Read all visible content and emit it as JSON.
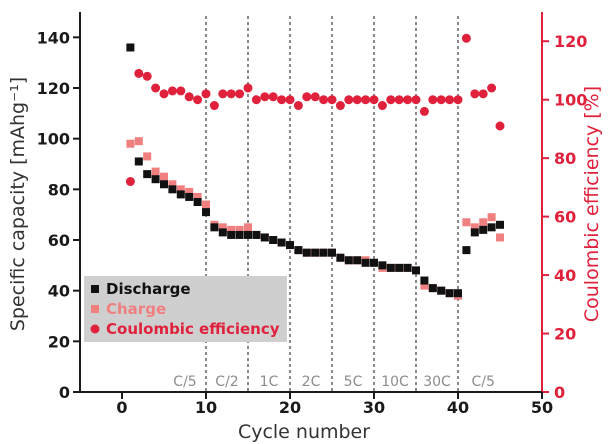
{
  "chart_data": {
    "type": "scatter",
    "xlabel": "Cycle number",
    "ylabel_left": "Specific capacity [mAhg⁻¹]",
    "ylabel_right": "Coulombic efficiency [%]",
    "xlim": [
      -5,
      50
    ],
    "ylim_left": [
      0,
      150
    ],
    "ylim_right": [
      0,
      130
    ],
    "xticks": [
      0,
      10,
      20,
      30,
      40,
      50
    ],
    "yticks_left": [
      0,
      20,
      40,
      60,
      80,
      100,
      120,
      140
    ],
    "yticks_right": [
      0,
      20,
      40,
      60,
      80,
      100,
      120
    ],
    "grid": false,
    "legend_position": "bottom-left",
    "rate_boundaries": [
      10,
      15,
      20,
      25,
      30,
      35,
      40
    ],
    "rate_labels": [
      {
        "label": "C/5",
        "x": 7.5
      },
      {
        "label": "C/2",
        "x": 12.5
      },
      {
        "label": "1C",
        "x": 17.5
      },
      {
        "label": "2C",
        "x": 22.5
      },
      {
        "label": "5C",
        "x": 27.5
      },
      {
        "label": "10C",
        "x": 32.5
      },
      {
        "label": "30C",
        "x": 37.5
      },
      {
        "label": "C/5",
        "x": 43
      }
    ],
    "colors": {
      "discharge": "#111111",
      "charge": "#f08080",
      "efficiency": "#e0213c",
      "right_axis": "#e0213c",
      "legend_bg": "#cfcfcf"
    },
    "series": [
      {
        "name": "Discharge",
        "axis": "left",
        "marker": "square",
        "x": [
          1,
          2,
          3,
          4,
          5,
          6,
          7,
          8,
          9,
          10,
          11,
          12,
          13,
          14,
          15,
          16,
          17,
          18,
          19,
          20,
          21,
          22,
          23,
          24,
          25,
          26,
          27,
          28,
          29,
          30,
          31,
          32,
          33,
          34,
          35,
          36,
          37,
          38,
          39,
          40,
          41,
          42,
          43,
          44,
          45
        ],
        "y": [
          136,
          91,
          86,
          84,
          82,
          80,
          78,
          77,
          75,
          71,
          65,
          63,
          62,
          62,
          62,
          62,
          61,
          60,
          59,
          58,
          56,
          55,
          55,
          55,
          55,
          53,
          52,
          52,
          51,
          51,
          50,
          49,
          49,
          49,
          48,
          44,
          41,
          40,
          39,
          39,
          56,
          63,
          64,
          65,
          66
        ]
      },
      {
        "name": "Charge",
        "axis": "left",
        "marker": "square",
        "x": [
          1,
          2,
          3,
          4,
          5,
          6,
          7,
          8,
          9,
          10,
          11,
          12,
          13,
          14,
          15,
          16,
          17,
          18,
          19,
          20,
          21,
          22,
          23,
          24,
          25,
          26,
          27,
          28,
          29,
          30,
          31,
          32,
          33,
          34,
          35,
          36,
          37,
          38,
          39,
          40,
          41,
          42,
          43,
          44,
          45
        ],
        "y": [
          98,
          99,
          93,
          87,
          85,
          82,
          80,
          79,
          77,
          74,
          66,
          65,
          64,
          64,
          65,
          62,
          61,
          60,
          59,
          58,
          56,
          55,
          55,
          55,
          55,
          53,
          52,
          52,
          52,
          51,
          49,
          49,
          49,
          49,
          48,
          42,
          41,
          40,
          39,
          38,
          67,
          65,
          67,
          69,
          61
        ]
      },
      {
        "name": "Coulombic efficiency",
        "axis": "right",
        "marker": "circle",
        "x": [
          1,
          2,
          3,
          4,
          5,
          6,
          7,
          8,
          9,
          10,
          11,
          12,
          13,
          14,
          15,
          16,
          17,
          18,
          19,
          20,
          21,
          22,
          23,
          24,
          25,
          26,
          27,
          28,
          29,
          30,
          31,
          32,
          33,
          34,
          35,
          36,
          37,
          38,
          39,
          40,
          41,
          42,
          43,
          44,
          45
        ],
        "y": [
          72,
          109,
          108,
          104,
          102,
          103,
          103,
          101,
          100,
          102,
          98,
          102,
          102,
          102,
          104,
          100,
          101,
          101,
          100,
          100,
          98,
          101,
          101,
          100,
          100,
          98,
          100,
          100,
          100,
          100,
          98,
          100,
          100,
          100,
          100,
          96,
          100,
          100,
          100,
          100,
          121,
          102,
          102,
          104,
          91
        ]
      }
    ]
  }
}
